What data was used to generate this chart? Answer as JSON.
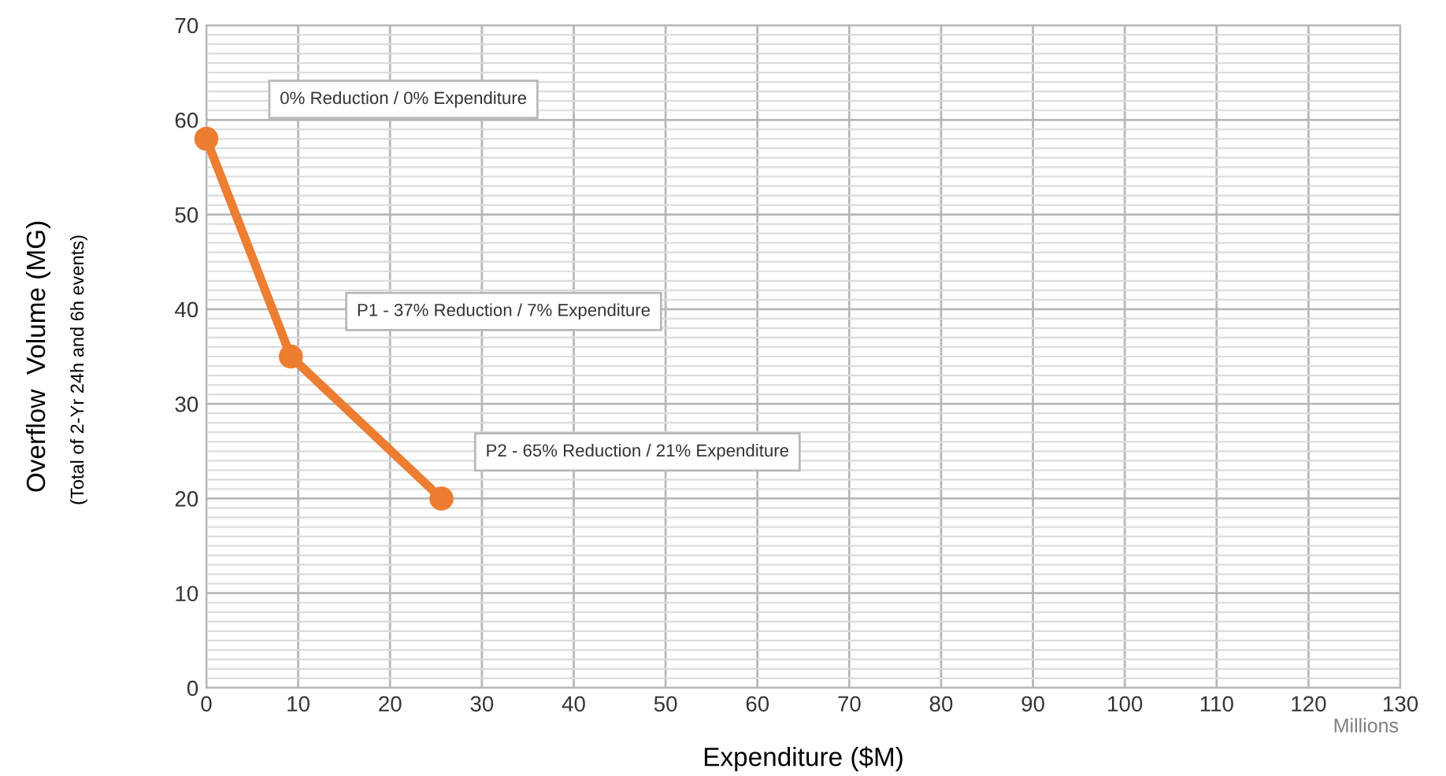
{
  "chart_data": {
    "type": "line",
    "xlabel": "Expenditure ($M)",
    "ylabel": "Overflow  Volume (MG)",
    "x": [
      0,
      9.2,
      25.6
    ],
    "series": [
      {
        "color": "#ed7d31",
        "values": [
          58,
          35,
          20
        ]
      }
    ],
    "marker": "circle",
    "line_style": "solid",
    "xlim": [
      0,
      130
    ],
    "xticks": [
      0,
      10,
      20,
      30,
      40,
      50,
      60,
      70,
      80,
      90,
      100,
      110,
      120,
      130
    ],
    "ylim": [
      0,
      70
    ],
    "yticks": [
      0,
      10,
      20,
      30,
      40,
      50,
      60,
      70
    ],
    "grid": true,
    "legend": false,
    "annotations": [
      "0% Reduction / 0% Expenditure",
      "P1 - 37% Reduction / 7% Expenditure",
      "P2 - 65% Reduction / 21% Expenditure",
      "(Total of 2-Yr 24h and 6h events)",
      "Millions"
    ]
  }
}
